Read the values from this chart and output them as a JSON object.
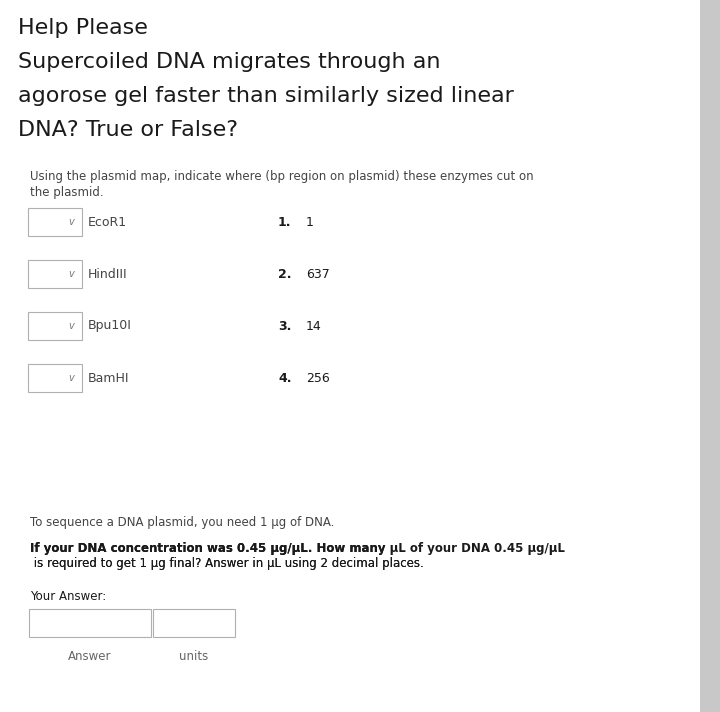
{
  "bg_color": "#f0f0f0",
  "title_lines": [
    "Help Please",
    "Supercoiled DNA migrates through an",
    "agorose gel faster than similarly sized linear",
    "DNA? True or False?"
  ],
  "subtitle_line1": "Using the plasmid map, indicate where (bp region on plasmid) these enzymes cut on",
  "subtitle_line2": "the plasmid.",
  "enzymes": [
    "EcoR1",
    "HindIII",
    "Bpu10I",
    "BamHI"
  ],
  "answer_nums": [
    "1.",
    "2.",
    "3.",
    "4."
  ],
  "answer_vals": [
    "1",
    "637",
    "14",
    "256"
  ],
  "seq_line1": "To sequence a DNA plasmid, you need 1 μg of DNA.",
  "seq_line2a": "If your DNA concentration was 0.45 μg/μL. How many ",
  "seq_line2b": "μL",
  "seq_line2c": " of your DNA 0.45 μg/μL",
  "seq_line3": " is required to get 1 μg final? Answer in μL using 2 decimal places.",
  "your_answer_label": "Your Answer:",
  "answer_label": "Answer",
  "units_label": "units",
  "gray_strip_color": "#c8c8c8",
  "box_edge_color": "#b0b0b0",
  "text_dark": "#1a1a1a",
  "text_med": "#444444",
  "text_light": "#666666"
}
